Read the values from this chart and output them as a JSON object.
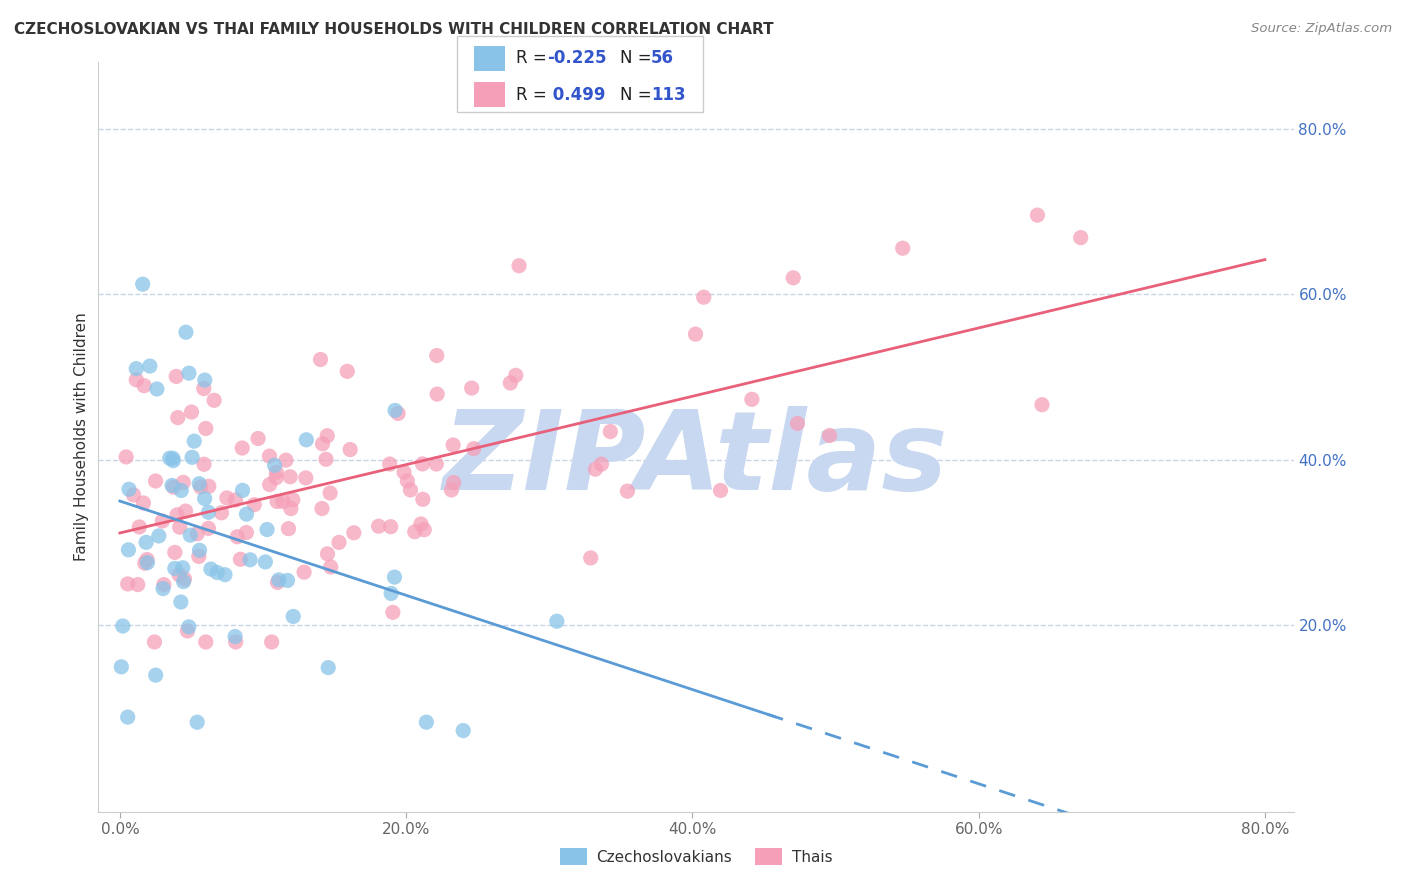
{
  "title": "CZECHOSLOVAKIAN VS THAI FAMILY HOUSEHOLDS WITH CHILDREN CORRELATION CHART",
  "source": "Source: ZipAtlas.com",
  "ylabel": "Family Households with Children",
  "czech_R": -0.225,
  "czech_N": 56,
  "thai_R": 0.499,
  "thai_N": 113,
  "czech_color": "#89c4e8",
  "thai_color": "#f5a0b8",
  "czech_line_color": "#5b9bd5",
  "thai_line_color": "#e8607a",
  "background_color": "#ffffff",
  "grid_color": "#c8d4e8",
  "watermark_color": "#c8d8f0",
  "legend_edge_color": "#cccccc",
  "tick_color_y": "#4472c4",
  "tick_color_x": "#666666",
  "title_color": "#333333",
  "ylabel_color": "#333333",
  "source_color": "#888888",
  "xmin": 0.0,
  "xmax": 0.8,
  "ymin": 0.0,
  "ymax": 0.88,
  "xticks": [
    0.0,
    0.2,
    0.4,
    0.6,
    0.8
  ],
  "yticks": [
    0.2,
    0.4,
    0.6,
    0.8
  ]
}
